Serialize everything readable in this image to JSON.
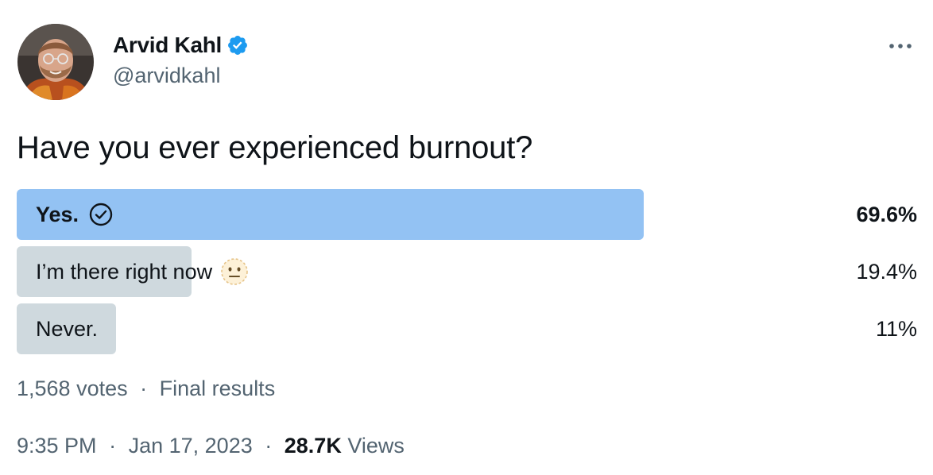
{
  "author": {
    "display_name": "Arvid Kahl",
    "handle": "@arvidkahl",
    "verified": true,
    "avatar_icon": "profile-photo"
  },
  "tweet": {
    "text": "Have you ever experienced burnout?"
  },
  "poll": {
    "options": [
      {
        "label": "Yes.",
        "percent_text": "69.6%",
        "percent": 69.6,
        "winner": true,
        "icon": "check-circle-icon"
      },
      {
        "label": "I’m there right now",
        "percent_text": "19.4%",
        "percent": 19.4,
        "winner": false,
        "icon": "neutral-face-emoji"
      },
      {
        "label": "Never.",
        "percent_text": "11%",
        "percent": 11,
        "winner": false,
        "icon": ""
      }
    ],
    "votes": "1,568 votes",
    "separator": "·",
    "status": "Final results"
  },
  "footer": {
    "time": "9:35 PM",
    "separator": "·",
    "date": "Jan 17, 2023",
    "views_count": "28.7K",
    "views_label": "Views"
  },
  "colors": {
    "winner_bar": "#93c2f3",
    "other_bar": "#cfd9de",
    "verified_badge": "#1d9bf0",
    "secondary_text": "#536471",
    "primary_text": "#0f1419"
  }
}
